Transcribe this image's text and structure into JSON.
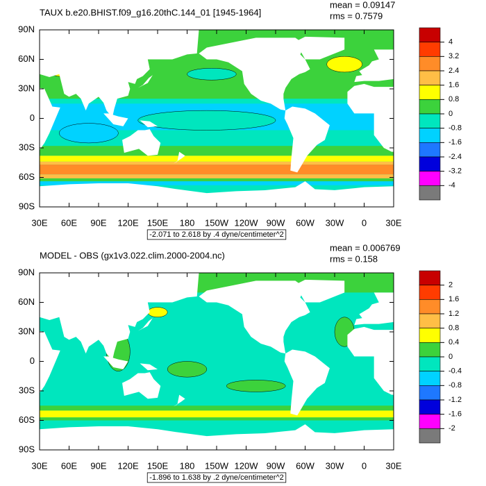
{
  "panels": [
    {
      "title": "TAUX b.e20.BHIST.f09_g16.20thC.144_01 [1945-1964]",
      "mean": "mean = 0.09147",
      "rms": "rms = 0.7579",
      "lat_labels": [
        "90N",
        "60N",
        "30N",
        "0",
        "30S",
        "60S",
        "90S"
      ],
      "lon_labels": [
        "30E",
        "60E",
        "90E",
        "120E",
        "150E",
        "180",
        "150W",
        "120W",
        "90W",
        "60W",
        "30W",
        "0",
        "30E"
      ],
      "colorbar": {
        "labels": [
          "4",
          "3.2",
          "2.4",
          "1.6",
          "0.8",
          "0",
          "-0.8",
          "-1.6",
          "-2.4",
          "-3.2",
          "-4"
        ],
        "colors": [
          "#c80000",
          "#ff3c00",
          "#ff8c28",
          "#ffbe46",
          "#ffff00",
          "#3cd23c",
          "#00e6be",
          "#00d2ff",
          "#1e78ff",
          "#0000dc",
          "#ff00ff",
          "#7a7a7a"
        ]
      },
      "range_note": "-2.071 to 2.618 by .4 dyne/centimeter^2"
    },
    {
      "title": "MODEL - OBS (gx1v3.022.clim.2000-2004.nc)",
      "mean": "mean = 0.006769",
      "rms": "rms = 0.158",
      "lat_labels": [
        "90N",
        "60N",
        "30N",
        "0",
        "30S",
        "60S",
        "90S"
      ],
      "lon_labels": [
        "30E",
        "60E",
        "90E",
        "120E",
        "150E",
        "180",
        "150W",
        "120W",
        "90W",
        "60W",
        "30W",
        "0",
        "30E"
      ],
      "colorbar": {
        "labels": [
          "2",
          "1.6",
          "1.2",
          "0.8",
          "0.4",
          "0",
          "-0.4",
          "-0.8",
          "-1.2",
          "-1.6",
          "-2"
        ],
        "colors": [
          "#c80000",
          "#ff3c00",
          "#ff8c28",
          "#ffbe46",
          "#ffff00",
          "#3cd23c",
          "#00e6be",
          "#00d2ff",
          "#1e78ff",
          "#0000dc",
          "#ff00ff",
          "#7a7a7a"
        ]
      },
      "range_note": "-1.896 to 1.638 by .2 dyne/centimeter^2"
    }
  ]
}
